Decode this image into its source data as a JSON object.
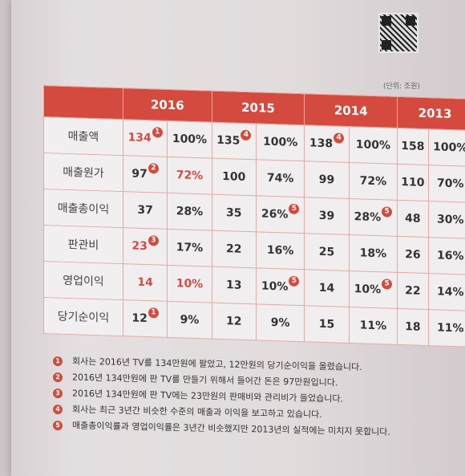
{
  "unit_label": "(단위: 조원)",
  "years": [
    "2016",
    "2015",
    "2014",
    "2013"
  ],
  "rows": [
    {
      "label": "매출액",
      "cells": [
        {
          "value": "134",
          "badge": "1",
          "red": true
        },
        {
          "value": "100%"
        },
        {
          "value": "135",
          "badge": "4"
        },
        {
          "value": "100%"
        },
        {
          "value": "138",
          "badge": "4"
        },
        {
          "value": "100%"
        },
        {
          "value": "158"
        },
        {
          "value": "100%"
        }
      ]
    },
    {
      "label": "매출원가",
      "cells": [
        {
          "value": "97",
          "badge": "2"
        },
        {
          "value": "72%",
          "red": true
        },
        {
          "value": "100"
        },
        {
          "value": "74%"
        },
        {
          "value": "99"
        },
        {
          "value": "72%"
        },
        {
          "value": "110"
        },
        {
          "value": "70%"
        }
      ]
    },
    {
      "label": "매출총이익",
      "cells": [
        {
          "value": "37"
        },
        {
          "value": "28%"
        },
        {
          "value": "35"
        },
        {
          "value": "26%",
          "badge": "5"
        },
        {
          "value": "39"
        },
        {
          "value": "28%",
          "badge": "5"
        },
        {
          "value": "48"
        },
        {
          "value": "30%"
        }
      ]
    },
    {
      "label": "판관비",
      "cells": [
        {
          "value": "23",
          "badge": "3",
          "red": true
        },
        {
          "value": "17%"
        },
        {
          "value": "22"
        },
        {
          "value": "16%"
        },
        {
          "value": "25"
        },
        {
          "value": "18%"
        },
        {
          "value": "26"
        },
        {
          "value": "16%"
        }
      ]
    },
    {
      "label": "영업이익",
      "cells": [
        {
          "value": "14",
          "red": true
        },
        {
          "value": "10%",
          "red": true
        },
        {
          "value": "13"
        },
        {
          "value": "10%",
          "badge": "5"
        },
        {
          "value": "14"
        },
        {
          "value": "10%",
          "badge": "5"
        },
        {
          "value": "22"
        },
        {
          "value": "14%"
        }
      ]
    },
    {
      "label": "당기순이익",
      "cells": [
        {
          "value": "12",
          "badge": "1"
        },
        {
          "value": "9%"
        },
        {
          "value": "12"
        },
        {
          "value": "9%"
        },
        {
          "value": "15"
        },
        {
          "value": "11%"
        },
        {
          "value": "18"
        },
        {
          "value": "11%"
        }
      ]
    }
  ],
  "notes": [
    {
      "num": "1",
      "text": "회사는 2016년 TV를 134만원에 팔았고, 12만원의 당기순이익을 올렸습니다."
    },
    {
      "num": "2",
      "text": "2016년 134만원에 판 TV를 만들기 위해서 들어간 돈은 97만원입니다."
    },
    {
      "num": "3",
      "text": "2016년 134만원에 판 TV에는 23만원의 판매비와 관리비가 들었습니다."
    },
    {
      "num": "4",
      "text": "회사는 최근 3년간 비슷한 수준의 매출과 이익을 보고하고 있습니다."
    },
    {
      "num": "5",
      "text": "매출총이익률과 영업이익률은 3년간 비슷했지만 2013년의 실적에는 미치지 못합니다."
    }
  ],
  "colors": {
    "accent": "#d44a3e"
  }
}
